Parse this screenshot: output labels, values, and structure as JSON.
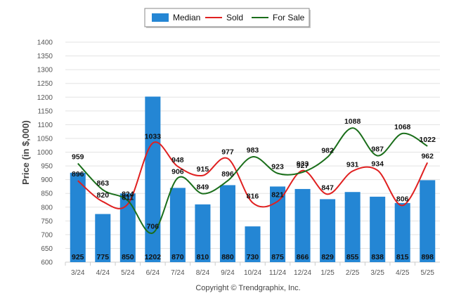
{
  "chart_data": {
    "type": "bar",
    "categories": [
      "3/24",
      "4/24",
      "5/24",
      "6/24",
      "7/24",
      "8/24",
      "9/24",
      "10/24",
      "11/24",
      "12/24",
      "1/25",
      "2/25",
      "3/25",
      "4/25",
      "5/25"
    ],
    "series": [
      {
        "name": "Median",
        "type": "bar",
        "color": "#2486d4",
        "values": [
          925,
          775,
          850,
          1202,
          870,
          810,
          880,
          730,
          875,
          866,
          829,
          855,
          838,
          815,
          898
        ]
      },
      {
        "name": "Sold",
        "type": "line",
        "color": "#e02020",
        "values": [
          896,
          820,
          811,
          1033,
          948,
          915,
          977,
          816,
          821,
          933,
          847,
          931,
          934,
          806,
          962
        ]
      },
      {
        "name": "For Sale",
        "type": "line",
        "color": "#1a6e1a",
        "values": [
          959,
          863,
          824,
          706,
          906,
          849,
          896,
          983,
          923,
          927,
          982,
          1088,
          987,
          1068,
          1022
        ]
      }
    ],
    "ylabel": "Price (in $,000)",
    "ylim": [
      600,
      1400
    ],
    "yticks": [
      600,
      650,
      700,
      750,
      800,
      850,
      900,
      950,
      1000,
      1050,
      1100,
      1150,
      1200,
      1250,
      1300,
      1350,
      1400
    ],
    "grid": true,
    "legend_position": "top-center"
  },
  "footer": "Copyright © Trendgraphix, Inc."
}
